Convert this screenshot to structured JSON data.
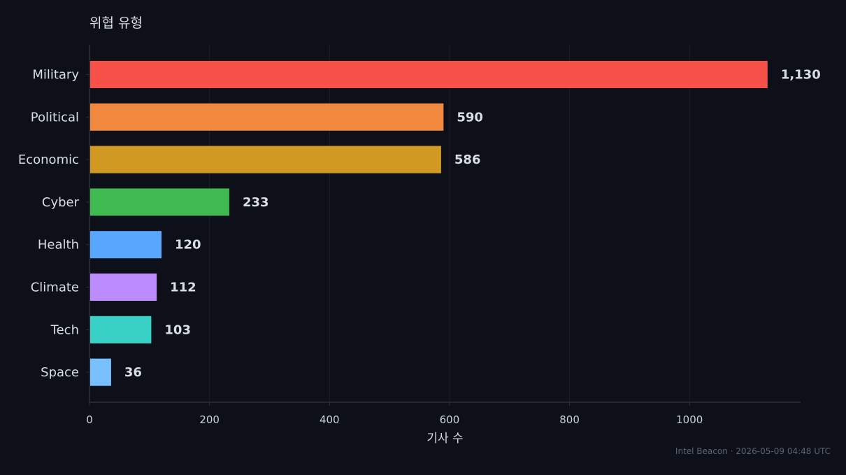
{
  "chart_data": {
    "type": "bar",
    "orientation": "horizontal",
    "title": "위협 유형",
    "xlabel": "기사 수",
    "ylabel": "",
    "categories": [
      "Military",
      "Political",
      "Economic",
      "Cyber",
      "Health",
      "Climate",
      "Tech",
      "Space"
    ],
    "values": [
      1130,
      590,
      586,
      233,
      120,
      112,
      103,
      36
    ],
    "value_labels": [
      "1,130",
      "590",
      "586",
      "233",
      "120",
      "112",
      "103",
      "36"
    ],
    "bar_colors": [
      "#f85149",
      "#f0883e",
      "#d29922",
      "#3fb950",
      "#58a6ff",
      "#bc8cff",
      "#39d0c5",
      "#79c0ff"
    ],
    "xlim": [
      0,
      1185
    ],
    "xticks": [
      0,
      200,
      400,
      600,
      800,
      1000
    ],
    "grid": "vertical",
    "legend": "none"
  },
  "footer": {
    "credit": "Intel Beacon · 2026-05-09 04:48 UTC"
  },
  "colors": {
    "background": "#0d1018",
    "text": "#d8dde6",
    "tick_text": "#c9d1d9",
    "grid": "#1b202a",
    "axis": "#2c313b",
    "muted": "#5c6472"
  }
}
